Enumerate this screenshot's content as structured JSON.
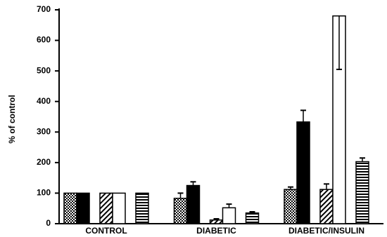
{
  "chart_data": {
    "type": "bar",
    "y_label": "% of control",
    "categories": [
      "CONTROL",
      "DIABETIC",
      "DIABETIC/INSULIN"
    ],
    "series": [
      {
        "color": "#000000",
        "pattern": "dots",
        "values": [
          100,
          83,
          112
        ],
        "errors": [
          0,
          17,
          8
        ]
      },
      {
        "color": "#000000",
        "pattern": "solid",
        "values": [
          100,
          125,
          333
        ],
        "errors": [
          0,
          12,
          38
        ]
      },
      {
        "color": "#000000",
        "pattern": "diagonal",
        "values": [
          100,
          12,
          112
        ],
        "errors": [
          0,
          4,
          18
        ]
      },
      {
        "color": "#000000",
        "pattern": "open",
        "values": [
          100,
          52,
          680
        ],
        "errors": [
          0,
          12,
          175
        ]
      },
      {
        "color": "#000000",
        "pattern": "horizontal",
        "values": [
          100,
          35,
          203
        ],
        "errors": [
          0,
          4,
          12
        ]
      }
    ],
    "ylim": [
      0,
      700
    ],
    "yticks": [
      0,
      100,
      200,
      300,
      400,
      500,
      600,
      700
    ],
    "grid": false
  }
}
